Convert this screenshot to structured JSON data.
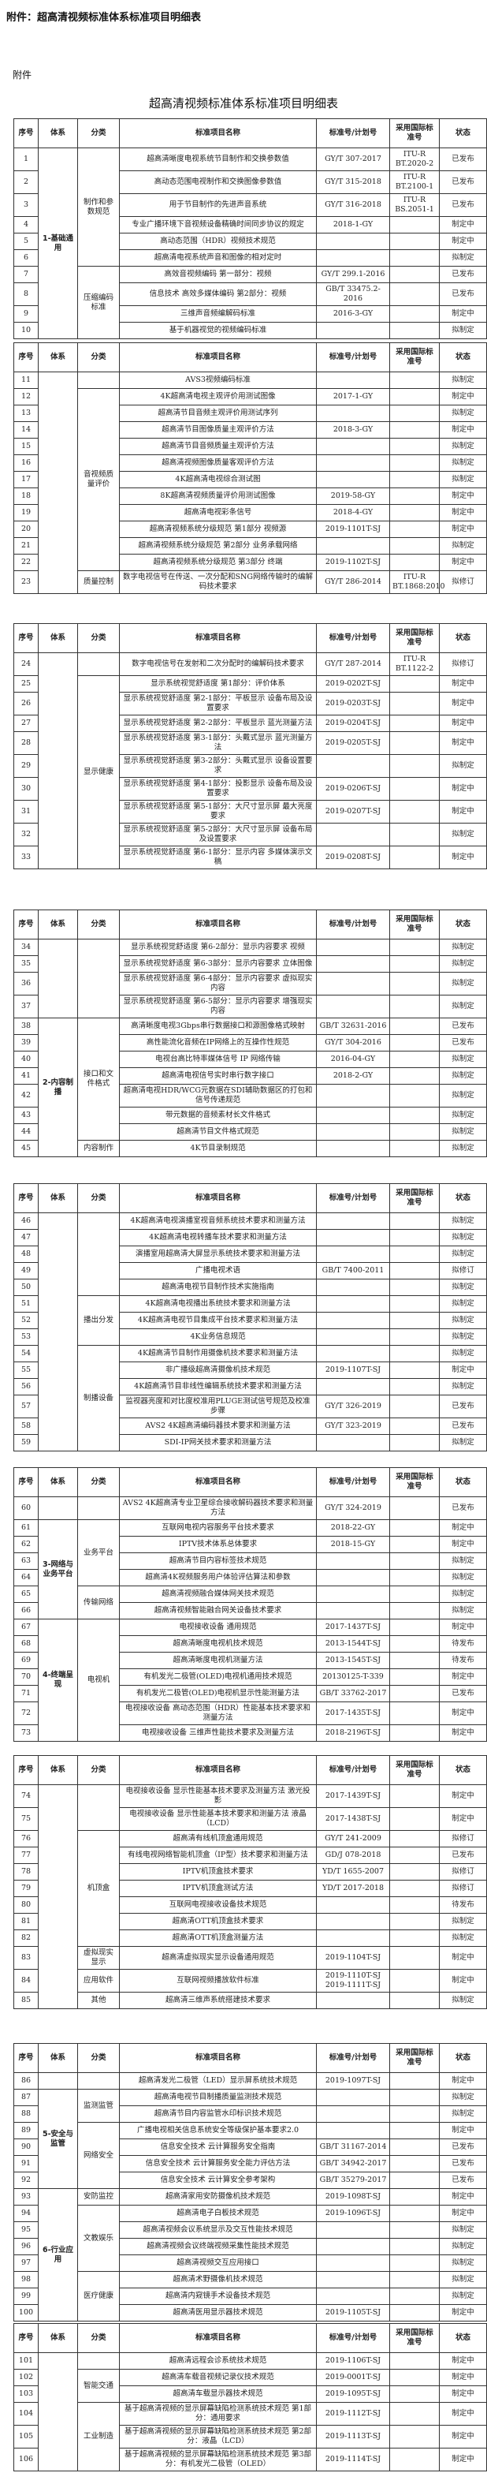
{
  "page_title": "附件：超高清视频标准体系标准项目明细表",
  "attachment_label": "附件",
  "document_title": "超高清视频标准体系标准项目明细表",
  "headers": [
    "序号",
    "体系",
    "分类",
    "标准项目名称",
    "标准号/计划号",
    "采用国际标准号",
    "状态"
  ],
  "segments": [
    {
      "systems": [
        [
          "1-基础通用",
          10
        ]
      ],
      "categories": [
        [
          "制作和参数规范",
          6
        ],
        [
          "压缩编码标准",
          4
        ]
      ],
      "rows": [
        [
          "1",
          "超高清晰度电视系统节目制作和交换参数值",
          "GY/T 307-2017",
          "ITU-R BT.2020-2",
          "已发布"
        ],
        [
          "2",
          "高动态范围电视制作和交换图像参数值",
          "GY/T 315-2018",
          "ITU-R BT.2100-1",
          "已发布"
        ],
        [
          "3",
          "用于节目制作的先进声音系统",
          "GY/T 316-2018",
          "ITU-R BS.2051-1",
          "已发布"
        ],
        [
          "4",
          "专业广播环境下音视频设备精确时间同步协议的规定",
          "2018-1-GY",
          "",
          "制定中"
        ],
        [
          "5",
          "高动态范围（HDR）视频技术规范",
          "",
          "",
          "制定中"
        ],
        [
          "6",
          "超高清电视系统声音和图像的相对定时",
          "",
          "",
          "拟制定"
        ],
        [
          "7",
          "高效音视频编码 第一部分：视频",
          "GY/T 299.1-2016",
          "",
          "已发布"
        ],
        [
          "8",
          "信息技术 高效多媒体编码 第2部分：视频",
          "GB/T 33475.2-2016",
          "",
          "已发布"
        ],
        [
          "9",
          "三维声音频编解码标准",
          "2016-3-GY",
          "",
          "制定中"
        ],
        [
          "10",
          "基于机器视觉的视频编码标准",
          "",
          "",
          "拟制定"
        ]
      ]
    },
    {
      "systems": [
        [
          "",
          13
        ]
      ],
      "categories": [
        [
          "",
          1
        ],
        [
          "音视频质量评价",
          11
        ],
        [
          "质量控制",
          1
        ]
      ],
      "rows": [
        [
          "11",
          "AVS3视频编码标准",
          "",
          "",
          "拟制定"
        ],
        [
          "12",
          "4K超高清电视主观评价用测试图像",
          "2017-1-GY",
          "",
          "制定中"
        ],
        [
          "13",
          "超高清节目音频主观评价用测试序列",
          "",
          "",
          "拟制定"
        ],
        [
          "14",
          "超高清节目图像质量主观评价方法",
          "2018-3-GY",
          "",
          "制定中"
        ],
        [
          "15",
          "超高清节目音频质量主观评价方法",
          "",
          "",
          "拟制定"
        ],
        [
          "16",
          "超高清视频图像质量客观评价方法",
          "",
          "",
          "拟制定"
        ],
        [
          "17",
          "4K超高清电视综合测试图",
          "",
          "",
          "拟制定"
        ],
        [
          "18",
          "8K超高清视频质量评价用测试图像",
          "2019-58-GY",
          "",
          "制定中"
        ],
        [
          "19",
          "超高清电视彩条信号",
          "2018-4-GY",
          "",
          "制定中"
        ],
        [
          "20",
          "超高清视频系统分级规范 第1部分 视频源",
          "2019-1101T-SJ",
          "",
          "制定中"
        ],
        [
          "21",
          "超高清视频系统分级规范 第2部分 业务承载网络",
          "",
          "",
          "拟制定"
        ],
        [
          "22",
          "超高清视频系统分级规范 第3部分 终端",
          "2019-1102T-SJ",
          "",
          "制定中"
        ],
        [
          "23",
          "数字电视信号在传送、一次分配和SNG网络传输时的编解码技术要求",
          "GY/T 286-2014",
          "ITU-R BT.1868:2010",
          "拟修订"
        ]
      ]
    },
    {
      "systems": [
        [
          "",
          10
        ]
      ],
      "categories": [
        [
          "",
          1
        ],
        [
          "显示健康",
          9
        ]
      ],
      "rows": [
        [
          "24",
          "数字电视信号在发射和二次分配时的编解码技术要求",
          "GY/T 287-2014",
          "ITU-R BT.1122-2",
          "拟修订"
        ],
        [
          "25",
          "显示系统视觉舒适度 第1部分：评价体系",
          "2019-0202T-SJ",
          "",
          "制定中"
        ],
        [
          "26",
          "显示系统视觉舒适度 第2-1部分：平板显示 设备布局及设置要求",
          "2019-0203T-SJ",
          "",
          "制定中"
        ],
        [
          "27",
          "显示系统视觉舒适度 第2-2部分：平板显示 蓝光测量方法",
          "2019-0204T-SJ",
          "",
          "制定中"
        ],
        [
          "28",
          "显示系统视觉舒适度 第3-1部分：头戴式显示 蓝光测量方法",
          "2019-0205T-SJ",
          "",
          "制定中"
        ],
        [
          "29",
          "显示系统视觉舒适度 第3-2部分：头戴式显示 设备设置要求",
          "",
          "",
          "拟制定"
        ],
        [
          "30",
          "显示系统视觉舒适度 第4-1部分：投影显示 设备布局及设置要求",
          "2019-0206T-SJ",
          "",
          "制定中"
        ],
        [
          "31",
          "显示系统视觉舒适度 第5-1部分：大尺寸显示屏 最大亮度要求",
          "2019-0207T-SJ",
          "",
          "制定中"
        ],
        [
          "32",
          "显示系统视觉舒适度 第5-2部分：大尺寸显示屏 设备布局及设置要求",
          "",
          "",
          "拟制定"
        ],
        [
          "33",
          "显示系统视觉舒适度 第6-1部分：显示内容 多媒体演示文稿",
          "2019-0208T-SJ",
          "",
          "制定中"
        ]
      ]
    },
    {
      "systems": [
        [
          "",
          4
        ],
        [
          "2-内容制播",
          8
        ]
      ],
      "categories": [
        [
          "",
          4
        ],
        [
          "接口和文件格式",
          7
        ],
        [
          "内容制作",
          1
        ]
      ],
      "rows": [
        [
          "34",
          "显示系统视觉舒适度 第6-2部分：显示内容要求 视频",
          "",
          "",
          "拟制定"
        ],
        [
          "35",
          "显示系统视觉舒适度 第6-3部分：显示内容要求 立体图像",
          "",
          "",
          "拟制定"
        ],
        [
          "36",
          "显示系统视觉舒适度 第6-4部分：显示内容要求 虚拟现实内容",
          "",
          "",
          "拟制定"
        ],
        [
          "37",
          "显示系统视觉舒适度 第6-5部分：显示内容要求 增强现实内容",
          "",
          "",
          "拟制定"
        ],
        [
          "38",
          "高清晰度电视3Gbps串行数据接口和源图像格式映射",
          "GB/T 32631-2016",
          "",
          "已发布"
        ],
        [
          "39",
          "高性能流化音频在IP网络上的互操作性规范",
          "GY/T 304-2016",
          "",
          "已发布"
        ],
        [
          "40",
          "电视台高比特率媒体信号 IP 网络传输",
          "2016-04-GY",
          "",
          "拟制定"
        ],
        [
          "41",
          "超高清电视信号实时串行数字接口",
          "2018-2-GY",
          "",
          "拟制定"
        ],
        [
          "42",
          "超高清电视HDR/WCG元数据在SDI辅助数据区的打包和信号传递规范",
          "",
          "",
          "拟制定"
        ],
        [
          "43",
          "带元数据的音频素材长文件格式",
          "",
          "",
          "拟制定"
        ],
        [
          "44",
          "超高清节目文件格式规范",
          "",
          "",
          "拟制定"
        ],
        [
          "45",
          "4K节目录制规范",
          "",
          "",
          "拟制定"
        ]
      ]
    },
    {
      "systems": [
        [
          "",
          14
        ]
      ],
      "categories": [
        [
          "",
          5
        ],
        [
          "播出分发",
          3
        ],
        [
          "制播设备",
          6
        ]
      ],
      "rows": [
        [
          "46",
          "4K超高清电视演播室视音频系统技术要求和测量方法",
          "",
          "",
          "拟制定"
        ],
        [
          "47",
          "4K超高清电视转播车技术要求和测量方法",
          "",
          "",
          "拟制定"
        ],
        [
          "48",
          "演播室用超高清大屏显示系统技术要求和测量方法",
          "",
          "",
          "拟制定"
        ],
        [
          "49",
          "广播电视术语",
          "GB/T 7400-2011",
          "",
          "拟修订"
        ],
        [
          "50",
          "超高清电视节目制作技术实施指南",
          "",
          "",
          "拟制定"
        ],
        [
          "51",
          "4K超高清电视播出系统技术要求和测量方法",
          "",
          "",
          "拟制定"
        ],
        [
          "52",
          "4K超高清电视节目集成平台技术要求和测量方法",
          "",
          "",
          "拟制定"
        ],
        [
          "53",
          "4K业务信息规范",
          "",
          "",
          "拟制定"
        ],
        [
          "54",
          "4K超高清节目制作用摄像机技术要求和测量方法",
          "",
          "",
          "拟制定"
        ],
        [
          "55",
          "非广播级超高清摄像机技术规范",
          "2019-1107T-SJ",
          "",
          "制定中"
        ],
        [
          "56",
          "4K超高清节目非线性编辑系统技术要求和测量方法",
          "",
          "",
          "拟制定"
        ],
        [
          "57",
          "监视器亮度和对比度校准用PLUGE测试信号规范及校准步骤",
          "GY/T 326-2019",
          "",
          "已发布"
        ],
        [
          "58",
          "AVS2 4K超高清编码器技术要求和测量方法",
          "GY/T 323-2019",
          "",
          "已发布"
        ],
        [
          "59",
          "SDI-IP网关技术要求和测量方法",
          "",
          "",
          "拟制定"
        ]
      ]
    },
    {
      "systems": [
        [
          "",
          1
        ],
        [
          "3-网络与业务平台",
          6
        ],
        [
          "4-终端呈现",
          7
        ]
      ],
      "categories": [
        [
          "",
          1
        ],
        [
          "业务平台",
          4
        ],
        [
          "传输网络",
          2
        ],
        [
          "电视机",
          7
        ]
      ],
      "rows": [
        [
          "60",
          "AVS2 4K超高清专业卫星综合接收解码器技术要求和测量方法",
          "GY/T 324-2019",
          "",
          "已发布"
        ],
        [
          "61",
          "互联网电视内容服务平台技术要求",
          "2018-22-GY",
          "",
          "制定中"
        ],
        [
          "62",
          "IPTV技术体系总体要求",
          "2018-15-GY",
          "",
          "制定中"
        ],
        [
          "63",
          "超高清节目内容标签技术规范",
          "",
          "",
          "拟制定"
        ],
        [
          "64",
          "超高清4K视频服务用户体验评估算法和参数",
          "",
          "",
          "拟制定"
        ],
        [
          "65",
          "超高清视频融合媒体网关技术规范",
          "",
          "",
          "拟制定"
        ],
        [
          "66",
          "超高清视频智能融合网关设备技术要求",
          "",
          "",
          "拟制定"
        ],
        [
          "67",
          "电视接收设备 通用规范",
          "2017-1437T-SJ",
          "",
          "制定中"
        ],
        [
          "68",
          "超高清晰度电视机技术规范",
          "2013-1544T-SJ",
          "",
          "待发布"
        ],
        [
          "69",
          "超高清晰度电视机测量方法",
          "2013-1545T-SJ",
          "",
          "待发布"
        ],
        [
          "70",
          "有机发光二极管(OLED)电视机通用技术规范",
          "20130125-T-339",
          "",
          "制定中"
        ],
        [
          "71",
          "有机发光二极管(OLED)电视机显示性能测量方法",
          "GB/T 33762-2017",
          "",
          "已发布"
        ],
        [
          "72",
          "电视接收设备 高动态范围（HDR）性能基本技术要求和测量方法",
          "2017-1435T-SJ",
          "",
          "制定中"
        ],
        [
          "73",
          "电视接收设备 三维声性能技术要求及测量方法",
          "2018-2196T-SJ",
          "",
          "制定中"
        ]
      ]
    },
    {
      "systems": [
        [
          "",
          12
        ]
      ],
      "categories": [
        [
          "",
          2
        ],
        [
          "机顶盒",
          7
        ],
        [
          "虚拟现实显示",
          1
        ],
        [
          "应用软件",
          1
        ],
        [
          "其他",
          1
        ]
      ],
      "rows": [
        [
          "74",
          "电视接收设备 显示性能基本技术要求及测量方法 激光投影",
          "2017-1439T-SJ",
          "",
          "制定中"
        ],
        [
          "75",
          "电视接收设备 显示性能基本技术要求和测量方法 液晶（LCD）",
          "2017-1438T-SJ",
          "",
          "制定中"
        ],
        [
          "76",
          "超高清有线机顶盒通用规范",
          "GY/T 241-2009",
          "",
          "拟修订"
        ],
        [
          "77",
          "有线电视网络智能机顶盒（IP型）技术要求和测量方法",
          "GD/J 078-2018",
          "",
          "已发布"
        ],
        [
          "78",
          "IPTV机顶盒技术要求",
          "YD/T 1655-2007",
          "",
          "拟修订"
        ],
        [
          "79",
          "IPTV机顶盒测试方法",
          "YD/T 2017-2018",
          "",
          "拟修订"
        ],
        [
          "80",
          "互联网电视接收设备技术规范",
          "",
          "",
          "待发布"
        ],
        [
          "81",
          "超高清OTT机顶盒技术要求",
          "",
          "",
          "拟制定"
        ],
        [
          "82",
          "超高清OTT机顶盒测量方法",
          "",
          "",
          "拟制定"
        ],
        [
          "83",
          "超高清虚拟现实显示设备通用规范",
          "2019-1104T-SJ",
          "",
          "制定中"
        ],
        [
          "84",
          "互联网视频播放软件标准",
          "2019-1110T-SJ\n2019-1111T-SJ",
          "",
          "制定中"
        ],
        [
          "85",
          "超高清三维声系统搭建技术要求",
          "",
          "",
          "拟制定"
        ]
      ]
    },
    {
      "systems": [
        [
          "",
          1
        ],
        [
          "5-安全与监管",
          6
        ],
        [
          "6-行业应用",
          8
        ]
      ],
      "categories": [
        [
          "",
          1
        ],
        [
          "监测监管",
          2
        ],
        [
          "网络安全",
          4
        ],
        [
          "安防监控",
          1
        ],
        [
          "文教娱乐",
          4
        ],
        [
          "医疗健康",
          3
        ]
      ],
      "rows": [
        [
          "86",
          "超高清发光二极管（LED）显示屏系统技术规范",
          "2019-1097T-SJ",
          "",
          "制定中"
        ],
        [
          "87",
          "超高清电视节目制播质量监测技术规范",
          "",
          "",
          "拟制定"
        ],
        [
          "88",
          "超高清节目内容监管水印标识技术规范",
          "",
          "",
          "拟制定"
        ],
        [
          "89",
          "广播电视相关信息系统安全等级保护基本要求2.0",
          "",
          "",
          "制定中"
        ],
        [
          "90",
          "信息安全技术 云计算服务安全指南",
          "GB/T 31167-2014",
          "",
          "已发布"
        ],
        [
          "91",
          "信息安全技术 云计算服务安全能力评估方法",
          "GB/T 34942-2017",
          "",
          "已发布"
        ],
        [
          "92",
          "信息安全技术 云计算安全参考架构",
          "GB/T 35279-2017",
          "",
          "已发布"
        ],
        [
          "93",
          "超高清家用安防摄像机技术规范",
          "2019-1098T-SJ",
          "",
          "制定中"
        ],
        [
          "94",
          "超高清电子白板技术规范",
          "2019-1096T-SJ",
          "",
          "制定中"
        ],
        [
          "95",
          "超高清视频会议系统显示及交互性能技术规范",
          "",
          "",
          "拟制定"
        ],
        [
          "96",
          "超高清视频会议终端视频采集性能技术规范",
          "",
          "",
          "拟制定"
        ],
        [
          "97",
          "超高清视频交互应用接口",
          "",
          "",
          "拟制定"
        ],
        [
          "98",
          "超高清术野摄像机技术规范",
          "",
          "",
          "拟制定"
        ],
        [
          "99",
          "超高清内窥镜手术设备技术规范",
          "",
          "",
          "拟制定"
        ],
        [
          "100",
          "超高清医用显示器技术规范",
          "2019-1105T-SJ",
          "",
          "制定中"
        ]
      ]
    },
    {
      "systems": [
        [
          "",
          6
        ]
      ],
      "categories": [
        [
          "",
          1
        ],
        [
          "智能交通",
          2
        ],
        [
          "工业制造",
          3
        ]
      ],
      "rows": [
        [
          "101",
          "超高清远程会诊系统技术规范",
          "2019-1106T-SJ",
          "",
          "制定中"
        ],
        [
          "102",
          "超高清车载音视频记录仪技术规范",
          "2019-0001T-SJ",
          "",
          "制定中"
        ],
        [
          "103",
          "超高清车载显示器技术规范",
          "2019-1095T-SJ",
          "",
          "制定中"
        ],
        [
          "104",
          "基于超高清视频的显示屏幕缺陷检测系统技术规范 第1部分：通用要求",
          "2019-1112T-SJ",
          "",
          "制定中"
        ],
        [
          "105",
          "基于超高清视频的显示屏幕缺陷检测系统技术规范 第2部分：液晶（LCD）",
          "2019-1113T-SJ",
          "",
          "制定中"
        ],
        [
          "106",
          "基于超高清视频的显示屏幕缺陷检测系统技术规范 第3部分：有机发光二极管（OLED）",
          "2019-1114T-SJ",
          "",
          "制定中"
        ]
      ]
    }
  ]
}
